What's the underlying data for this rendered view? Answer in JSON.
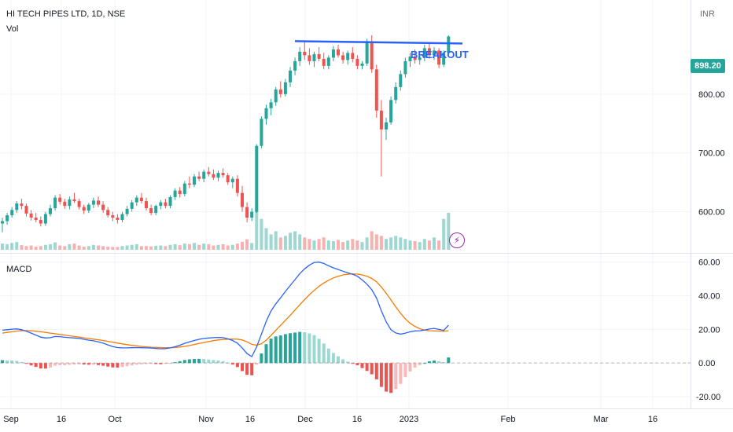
{
  "header": {
    "symbol_line": "HI TECH PIPES LTD, 1D, NSE",
    "vol_label": "Vol",
    "macd_label": "MACD",
    "currency": "INR"
  },
  "annotation": {
    "text": "BREAKOUT",
    "color": "#2962ff",
    "level": 888
  },
  "last_price": {
    "label": "898.20",
    "color": "#26a69a"
  },
  "colors": {
    "up": "#26a69a",
    "down": "#ef5350",
    "macd": "#2962ff",
    "signal": "#f57c00"
  },
  "chart_data": [
    {
      "type": "candlestick",
      "title": "HI TECH PIPES LTD, 1D, NSE",
      "ylim": [
        530,
        960
      ],
      "yticks": [
        600,
        700,
        800
      ],
      "ytick_labels": [
        "600.00",
        "700.00",
        "800.00"
      ],
      "x_tick_labels": [
        "Sep",
        "16",
        "Oct",
        "Nov",
        "16",
        "Dec",
        "16",
        "2023",
        "Feb",
        "Mar",
        "16"
      ],
      "ohlc": [
        [
          580,
          590,
          565,
          584
        ],
        [
          584,
          598,
          578,
          594
        ],
        [
          594,
          608,
          590,
          603
        ],
        [
          603,
          618,
          598,
          614
        ],
        [
          614,
          622,
          604,
          610
        ],
        [
          610,
          614,
          592,
          597
        ],
        [
          597,
          603,
          585,
          590
        ],
        [
          590,
          598,
          582,
          586
        ],
        [
          586,
          592,
          575,
          580
        ],
        [
          580,
          600,
          576,
          596
        ],
        [
          596,
          612,
          592,
          606
        ],
        [
          606,
          628,
          602,
          624
        ],
        [
          624,
          630,
          612,
          617
        ],
        [
          617,
          622,
          605,
          610
        ],
        [
          610,
          626,
          604,
          621
        ],
        [
          621,
          632,
          615,
          618
        ],
        [
          618,
          622,
          604,
          608
        ],
        [
          608,
          612,
          596,
          602
        ],
        [
          602,
          615,
          598,
          612
        ],
        [
          612,
          624,
          606,
          619
        ],
        [
          619,
          626,
          608,
          612
        ],
        [
          612,
          618,
          598,
          603
        ],
        [
          603,
          608,
          590,
          594
        ],
        [
          594,
          600,
          584,
          590
        ],
        [
          590,
          596,
          580,
          586
        ],
        [
          586,
          600,
          582,
          596
        ],
        [
          596,
          610,
          592,
          605
        ],
        [
          605,
          620,
          600,
          616
        ],
        [
          616,
          628,
          610,
          624
        ],
        [
          624,
          632,
          614,
          618
        ],
        [
          618,
          624,
          602,
          606
        ],
        [
          606,
          612,
          594,
          598
        ],
        [
          598,
          612,
          594,
          610
        ],
        [
          610,
          620,
          604,
          616
        ],
        [
          616,
          622,
          606,
          610
        ],
        [
          610,
          628,
          606,
          625
        ],
        [
          625,
          640,
          620,
          636
        ],
        [
          636,
          642,
          624,
          630
        ],
        [
          630,
          652,
          626,
          648
        ],
        [
          648,
          660,
          640,
          646
        ],
        [
          646,
          664,
          642,
          660
        ],
        [
          660,
          668,
          652,
          656
        ],
        [
          656,
          672,
          650,
          668
        ],
        [
          668,
          676,
          660,
          664
        ],
        [
          664,
          672,
          654,
          658
        ],
        [
          658,
          670,
          652,
          666
        ],
        [
          666,
          674,
          658,
          662
        ],
        [
          662,
          666,
          646,
          650
        ],
        [
          650,
          660,
          640,
          656
        ],
        [
          656,
          662,
          626,
          632
        ],
        [
          632,
          644,
          600,
          608
        ],
        [
          608,
          616,
          582,
          590
        ],
        [
          590,
          606,
          584,
          600
        ],
        [
          600,
          715,
          598,
          712
        ],
        [
          712,
          762,
          708,
          758
        ],
        [
          758,
          782,
          748,
          776
        ],
        [
          776,
          792,
          764,
          786
        ],
        [
          786,
          812,
          780,
          808
        ],
        [
          808,
          822,
          794,
          800
        ],
        [
          800,
          826,
          796,
          820
        ],
        [
          820,
          846,
          812,
          840
        ],
        [
          840,
          862,
          832,
          856
        ],
        [
          856,
          880,
          848,
          872
        ],
        [
          872,
          890,
          858,
          866
        ],
        [
          866,
          878,
          850,
          856
        ],
        [
          856,
          872,
          846,
          868
        ],
        [
          868,
          880,
          856,
          860
        ],
        [
          860,
          870,
          842,
          848
        ],
        [
          848,
          866,
          842,
          862
        ],
        [
          862,
          882,
          856,
          876
        ],
        [
          876,
          884,
          862,
          866
        ],
        [
          866,
          872,
          852,
          858
        ],
        [
          858,
          874,
          850,
          870
        ],
        [
          870,
          880,
          854,
          860
        ],
        [
          860,
          866,
          842,
          848
        ],
        [
          848,
          856,
          842,
          852
        ],
        [
          852,
          894,
          848,
          890
        ],
        [
          890,
          900,
          836,
          842
        ],
        [
          842,
          850,
          760,
          772
        ],
        [
          772,
          790,
          660,
          740
        ],
        [
          740,
          760,
          722,
          752
        ],
        [
          752,
          796,
          748,
          790
        ],
        [
          790,
          820,
          784,
          812
        ],
        [
          812,
          840,
          806,
          834
        ],
        [
          834,
          862,
          828,
          856
        ],
        [
          856,
          870,
          846,
          864
        ],
        [
          864,
          876,
          852,
          858
        ],
        [
          858,
          866,
          850,
          862
        ],
        [
          862,
          884,
          856,
          878
        ],
        [
          878,
          886,
          860,
          866
        ],
        [
          866,
          880,
          858,
          874
        ],
        [
          874,
          878,
          844,
          850
        ],
        [
          850,
          874,
          846,
          870
        ],
        [
          870,
          900,
          864,
          898
        ]
      ],
      "volume": [
        20,
        18,
        22,
        25,
        15,
        12,
        14,
        10,
        12,
        16,
        18,
        24,
        14,
        12,
        18,
        20,
        14,
        10,
        12,
        16,
        14,
        12,
        10,
        9,
        9,
        12,
        14,
        16,
        18,
        12,
        12,
        11,
        13,
        14,
        12,
        16,
        18,
        15,
        20,
        18,
        22,
        16,
        20,
        18,
        14,
        16,
        18,
        14,
        16,
        20,
        26,
        34,
        22,
        140,
        100,
        70,
        50,
        60,
        40,
        45,
        55,
        60,
        50,
        40,
        35,
        30,
        35,
        40,
        30,
        28,
        32,
        25,
        30,
        35,
        30,
        25,
        40,
        60,
        50,
        45,
        35,
        40,
        45,
        40,
        35,
        30,
        28,
        25,
        35,
        30,
        40,
        30,
        100,
        120
      ]
    },
    {
      "type": "macd",
      "title": "MACD",
      "ylim": [
        -27,
        65
      ],
      "yticks": [
        -20,
        0,
        20,
        40,
        60
      ],
      "ytick_labels": [
        "-20.00",
        "0.00",
        "20.00",
        "40.00",
        "60.00"
      ],
      "macd": [
        19.5,
        19.8,
        20.1,
        20.3,
        19.8,
        18.9,
        17.8,
        16.6,
        15.4,
        14.9,
        15.1,
        15.8,
        15.7,
        15.3,
        15.1,
        14.9,
        14.6,
        14.1,
        13.6,
        13.2,
        12.6,
        11.8,
        10.8,
        9.8,
        9.2,
        9.0,
        9.0,
        9.1,
        9.2,
        9.1,
        9.0,
        8.9,
        8.7,
        8.5,
        8.6,
        9.0,
        9.7,
        10.6,
        11.7,
        12.6,
        13.4,
        14.1,
        14.6,
        14.9,
        15.1,
        15.2,
        15.1,
        14.4,
        13.4,
        11.8,
        8.9,
        5.6,
        3.8,
        9.6,
        17.2,
        24.8,
        30.9,
        35.2,
        38.8,
        42.6,
        46.1,
        49.6,
        53.2,
        56.0,
        58.2,
        59.8,
        60.0,
        59.2,
        57.8,
        56.6,
        55.6,
        54.6,
        53.6,
        52.8,
        51.6,
        49.4,
        46.9,
        43.6,
        38.6,
        31.0,
        24.5,
        19.8,
        17.9,
        17.2,
        17.8,
        18.6,
        19.1,
        19.2,
        19.6,
        20.2,
        20.6,
        20.0,
        19.4,
        22.5
      ],
      "signal": [
        17.8,
        18.2,
        18.6,
        19.0,
        19.2,
        19.3,
        19.2,
        18.9,
        18.6,
        18.2,
        17.8,
        17.4,
        17.0,
        16.6,
        16.2,
        15.8,
        15.4,
        15.0,
        14.6,
        14.2,
        13.8,
        13.4,
        12.9,
        12.4,
        11.9,
        11.4,
        10.9,
        10.5,
        10.2,
        9.9,
        9.6,
        9.4,
        9.3,
        9.2,
        9.1,
        9.1,
        9.2,
        9.5,
        9.9,
        10.4,
        11.0,
        11.6,
        12.2,
        12.8,
        13.3,
        13.7,
        14.0,
        14.2,
        14.3,
        14.2,
        13.7,
        12.6,
        11.1,
        10.6,
        11.5,
        13.6,
        16.4,
        19.4,
        22.4,
        25.4,
        28.4,
        31.5,
        34.7,
        37.7,
        40.6,
        43.2,
        45.6,
        47.6,
        49.2,
        50.6,
        51.6,
        52.4,
        52.8,
        53.0,
        52.9,
        52.4,
        51.6,
        50.3,
        48.3,
        45.2,
        41.5,
        37.6,
        33.4,
        29.6,
        26.2,
        23.6,
        21.8,
        20.4,
        19.6,
        19.2,
        19.1,
        19.0,
        18.9,
        19.2
      ]
    }
  ]
}
